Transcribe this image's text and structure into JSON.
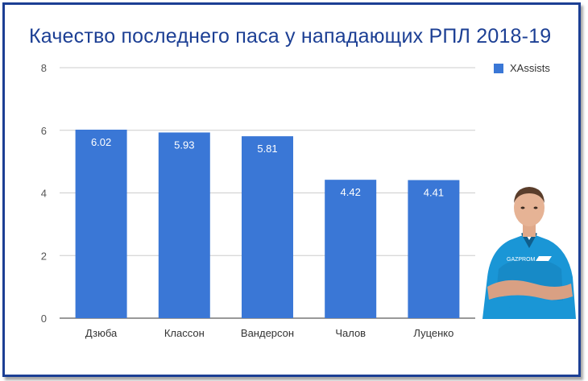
{
  "chart_data": {
    "type": "bar",
    "title": "Качество последнего паса у нападающих РПЛ 2018-19",
    "categories": [
      "Дзюба",
      "Классон",
      "Вандерсон",
      "Чалов",
      "Луценко"
    ],
    "series": [
      {
        "name": "XAssists",
        "values": [
          6.02,
          5.93,
          5.81,
          4.42,
          4.41
        ]
      }
    ],
    "value_labels": [
      "6.02",
      "5.93",
      "5.81",
      "4.42",
      "4.41"
    ],
    "xlabel": "",
    "ylabel": "",
    "ylim": [
      0,
      8
    ],
    "yticks": [
      0,
      2,
      4,
      6,
      8
    ],
    "ytick_labels": [
      "0",
      "2",
      "4",
      "6",
      "8"
    ],
    "grid": true,
    "legend_position": "top-right",
    "bar_color": "#3a77d6",
    "title_color": "#1c3f94",
    "frame_color": "#1c3f94"
  },
  "image": {
    "description_icon": "player-photo-icon",
    "shirt_color": "#1a96d6"
  }
}
